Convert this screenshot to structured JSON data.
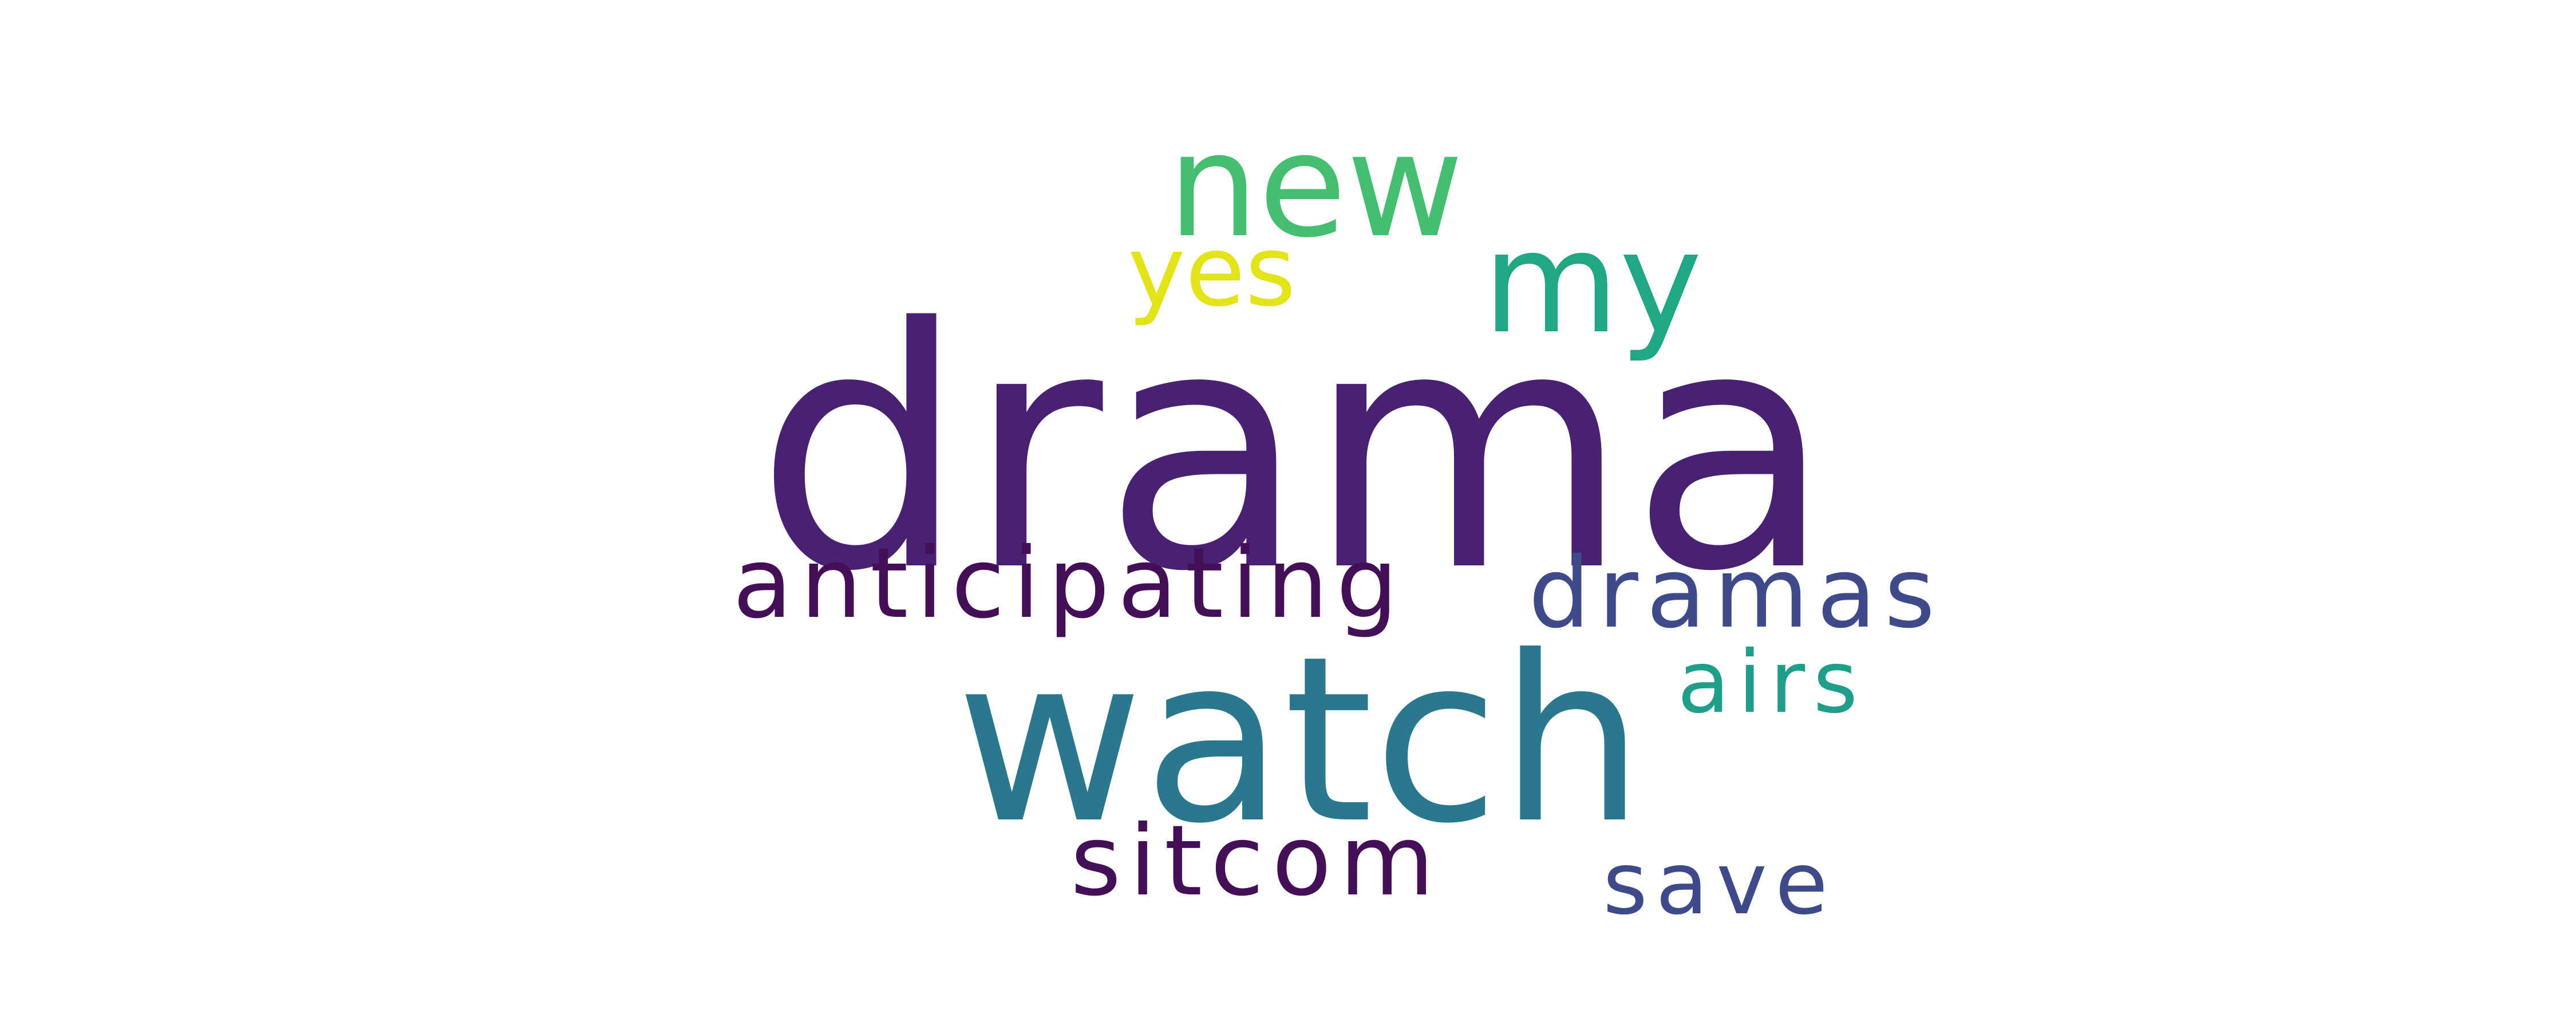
{
  "words": [
    {
      "text": "drama",
      "color": "#482173"
    },
    {
      "text": "new",
      "color": "#44bf70"
    },
    {
      "text": "my",
      "color": "#22a785"
    },
    {
      "text": "yes",
      "color": "#e2e418"
    },
    {
      "text": "anticipating",
      "color": "#440f56"
    },
    {
      "text": "dramas",
      "color": "#3e4a89"
    },
    {
      "text": "airs",
      "color": "#1f9e89"
    },
    {
      "text": "watch",
      "color": "#2a788e"
    },
    {
      "text": "sitcom",
      "color": "#440f56"
    },
    {
      "text": "save",
      "color": "#3e4a89"
    }
  ]
}
